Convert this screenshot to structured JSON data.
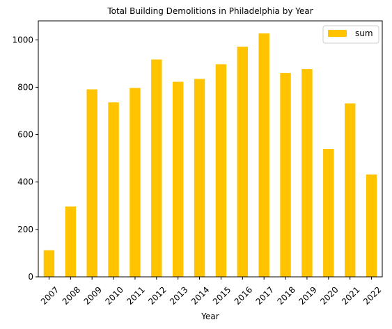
{
  "chart_data": {
    "type": "bar",
    "title": "Total Building Demolitions in Philadelphia by Year",
    "xlabel": "Year",
    "ylabel": "",
    "categories": [
      "2007",
      "2008",
      "2009",
      "2010",
      "2011",
      "2012",
      "2013",
      "2014",
      "2015",
      "2016",
      "2017",
      "2018",
      "2019",
      "2020",
      "2021",
      "2022"
    ],
    "series": [
      {
        "name": "sum",
        "values": [
          112,
          297,
          791,
          736,
          797,
          917,
          823,
          835,
          897,
          971,
          1027,
          860,
          877,
          540,
          732,
          432
        ]
      }
    ],
    "ylim": [
      0,
      1080
    ],
    "yticks": [
      0,
      200,
      400,
      600,
      800,
      1000
    ],
    "bar_color": "#FFC300",
    "grid": false,
    "legend_position": "top-right"
  }
}
